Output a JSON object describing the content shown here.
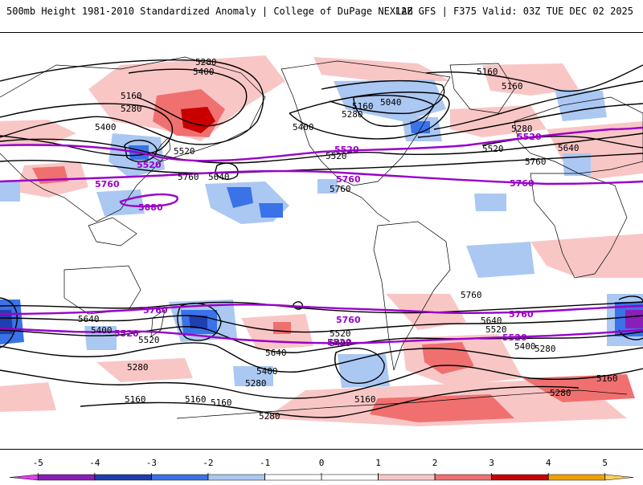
{
  "header": {
    "left": "500mb Height 1981-2010 Standardized Anomaly | College of DuPage NEXLAB",
    "right": "12Z GFS | F375 Valid: 03Z TUE DEC 02 2025"
  },
  "map": {
    "contour_labels": [
      "5280",
      "5400",
      "5160",
      "5280",
      "5400",
      "5520",
      "5760",
      "5640",
      "5400",
      "5160",
      "5040",
      "5280",
      "5520",
      "5160",
      "5760",
      "5520",
      "5160",
      "5280",
      "5640",
      "5760",
      "5640",
      "5400",
      "5520",
      "5280",
      "5400",
      "5160",
      "5160",
      "5160",
      "5280",
      "5640",
      "5520",
      "5400",
      "5280",
      "5160",
      "5760",
      "5640",
      "5520",
      "5400",
      "5280",
      "5160",
      "5280"
    ],
    "highlight_labels": [
      "5520",
      "5760",
      "5880",
      "5520",
      "5760",
      "5520",
      "5760",
      "5760",
      "5520",
      "5760",
      "5520",
      "5760",
      "5520"
    ],
    "colors": {
      "height_contour": "#000000",
      "highlight_contour": "#9a00c8",
      "coastline": "#000000"
    }
  },
  "colorbar": {
    "ticks": [
      "-5",
      "-4",
      "-3",
      "-2",
      "-1",
      "0",
      "1",
      "2",
      "3",
      "4",
      "5"
    ],
    "values": [
      -5,
      -4,
      -3,
      -2,
      -1,
      0,
      1,
      2,
      3,
      4,
      5
    ],
    "range": [
      -5.5,
      5.5
    ],
    "bins": [
      {
        "from": -5.5,
        "to": -5,
        "color": "#e040e8"
      },
      {
        "from": -5,
        "to": -4,
        "color": "#8a1fb8"
      },
      {
        "from": -4,
        "to": -3,
        "color": "#1f3fb0"
      },
      {
        "from": -3,
        "to": -2,
        "color": "#3a72e8"
      },
      {
        "from": -2,
        "to": -1,
        "color": "#aac8f2"
      },
      {
        "from": -1,
        "to": 1,
        "color": "#ffffff"
      },
      {
        "from": 1,
        "to": 2,
        "color": "#f9c6c6"
      },
      {
        "from": 2,
        "to": 3,
        "color": "#f07070"
      },
      {
        "from": 3,
        "to": 4,
        "color": "#c80000"
      },
      {
        "from": 4,
        "to": 5,
        "color": "#f0a000"
      },
      {
        "from": 5,
        "to": 5.5,
        "color": "#ffd060"
      }
    ]
  }
}
